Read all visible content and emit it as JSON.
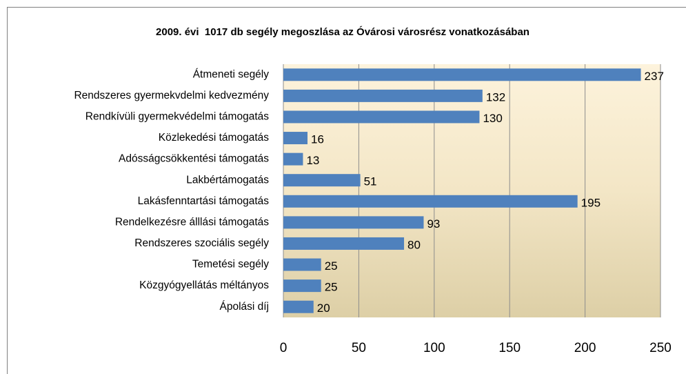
{
  "chart_data": {
    "type": "bar",
    "orientation": "horizontal",
    "title": "2009. évi  1017 db segély megoszlása az Óvárosi városrész vonatkozásában",
    "categories": [
      "Átmeneti segély",
      "Rendszeres gyermekvdelmi kedvezmény",
      "Rendkívüli gyermekvédelmi támogatás",
      "Közlekedési támogatás",
      "Adósságcsökkentési támogatás",
      "Lakbértámogatás",
      "Lakásfenntartási támogatás",
      "Rendelkezésre álllási támogatás",
      "Rendszeres szociális segély",
      "Temetési segély",
      "Közgyógyellátás méltányos",
      "Ápolási díj"
    ],
    "values": [
      237,
      132,
      130,
      16,
      13,
      51,
      195,
      93,
      80,
      25,
      25,
      20
    ],
    "color": "#4f81bd",
    "xlim": [
      0,
      250
    ],
    "xticks": [
      0,
      50,
      100,
      150,
      200,
      250
    ],
    "grid": true
  }
}
